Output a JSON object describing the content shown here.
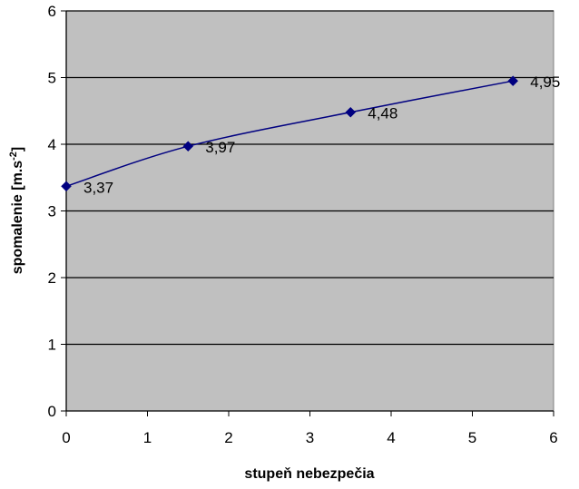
{
  "chart_data": {
    "type": "scatter",
    "title": "",
    "xlabel": "stupeň nebezpečia",
    "ylabel_base": "spomalenie [m.s",
    "ylabel_sup": "-2",
    "ylabel_close": "]",
    "xlim": [
      0,
      6
    ],
    "ylim": [
      0,
      6
    ],
    "x_ticks": [
      "0",
      "1",
      "2",
      "3",
      "4",
      "5",
      "6"
    ],
    "y_ticks": [
      "0",
      "1",
      "2",
      "3",
      "4",
      "5",
      "6"
    ],
    "grid": "horizontal",
    "legend": "none",
    "plot_background": "#c0c0c0",
    "series": [
      {
        "color": "#000080",
        "marker": "diamond",
        "line": "smooth",
        "points": [
          {
            "x": 0,
            "y": 3.37,
            "label": "3,37"
          },
          {
            "x": 1.5,
            "y": 3.97,
            "label": "3,97"
          },
          {
            "x": 3.5,
            "y": 4.48,
            "label": "4,48"
          },
          {
            "x": 5.5,
            "y": 4.95,
            "label": "4,95"
          }
        ]
      }
    ]
  }
}
